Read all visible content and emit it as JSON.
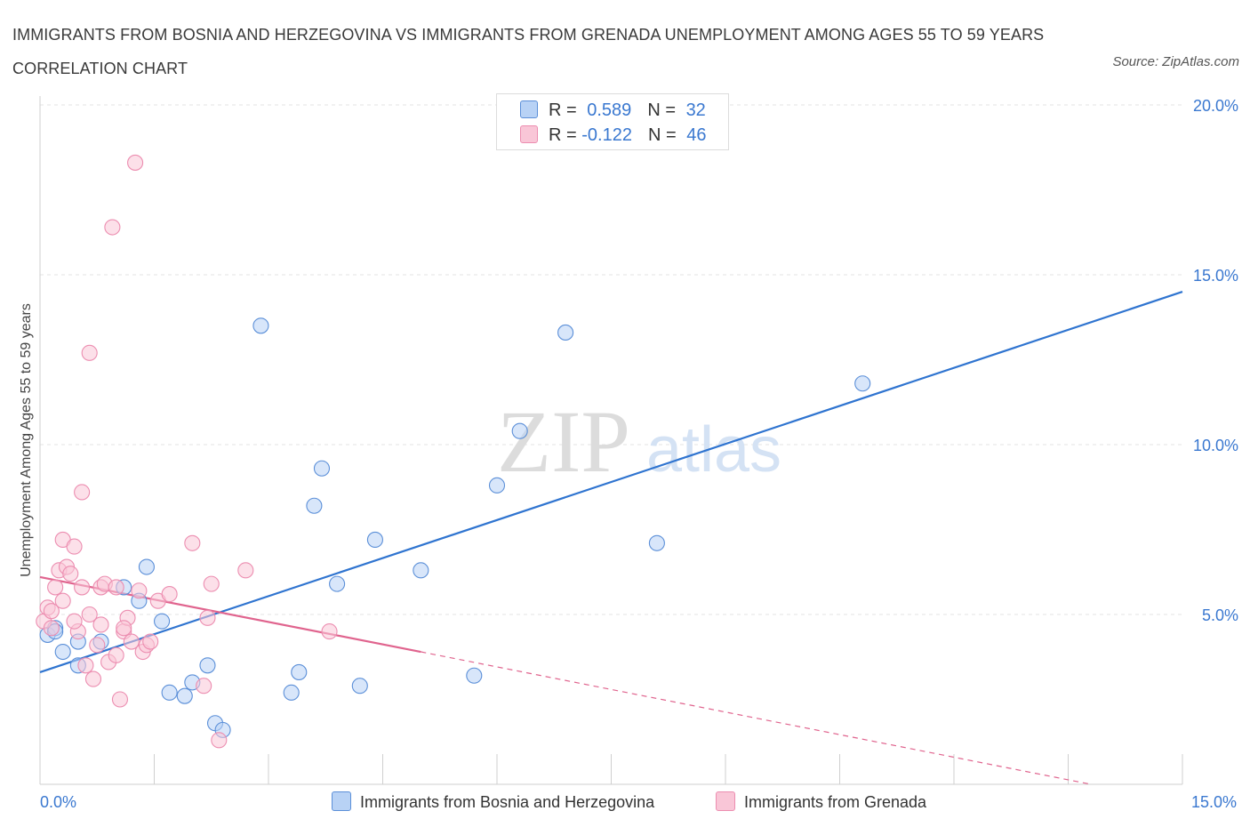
{
  "title": "IMMIGRANTS FROM BOSNIA AND HERZEGOVINA VS IMMIGRANTS FROM GRENADA UNEMPLOYMENT AMONG AGES 55 TO 59 YEARS CORRELATION CHART",
  "source": "Source: ZipAtlas.com",
  "watermark": {
    "zip": "ZIP",
    "atlas": "atlas"
  },
  "colors": {
    "blue": "#5b8fd8",
    "blue_fill": "#b8d2f5",
    "blue_line": "#2f74d0",
    "pink": "#ec8db0",
    "pink_fill": "#f9c6d7",
    "pink_line": "#e0648e",
    "axis_text": "#3a78d0",
    "grid": "#e3e3e3"
  },
  "legend_top": [
    {
      "r_label": "R = ",
      "r_value": "0.589",
      "n_label": "N = ",
      "n_value": "32"
    },
    {
      "r_label": "R = ",
      "r_value": "-0.122",
      "n_label": "N = ",
      "n_value": "46"
    }
  ],
  "chart_data": {
    "type": "scatter",
    "title": "IMMIGRANTS FROM BOSNIA AND HERZEGOVINA VS IMMIGRANTS FROM GRENADA UNEMPLOYMENT AMONG AGES 55 TO 59 YEARS CORRELATION CHART",
    "xlabel": "",
    "ylabel": "Unemployment Among Ages 55 to 59 years",
    "xlim": [
      0,
      15
    ],
    "ylim": [
      0,
      20
    ],
    "x_tick_labels": [
      "0.0%",
      "15.0%"
    ],
    "y_ticks": [
      5,
      10,
      15,
      20
    ],
    "y_tick_labels": [
      "5.0%",
      "10.0%",
      "15.0%",
      "20.0%"
    ],
    "grid": true,
    "legend_position": "bottom",
    "series": [
      {
        "name": "Immigrants from Bosnia and Herzegovina",
        "color": "#5b8fd8",
        "trend": {
          "x": [
            0,
            15
          ],
          "y": [
            3.3,
            14.5
          ],
          "style": "solid"
        },
        "points": [
          [
            0.1,
            4.4
          ],
          [
            0.2,
            4.6
          ],
          [
            0.3,
            3.9
          ],
          [
            0.5,
            4.2
          ],
          [
            0.8,
            4.2
          ],
          [
            0.5,
            3.5
          ],
          [
            1.1,
            5.8
          ],
          [
            1.3,
            5.4
          ],
          [
            1.4,
            6.4
          ],
          [
            1.6,
            4.8
          ],
          [
            1.7,
            2.7
          ],
          [
            1.9,
            2.6
          ],
          [
            2.0,
            3.0
          ],
          [
            2.2,
            3.5
          ],
          [
            2.3,
            1.8
          ],
          [
            2.4,
            1.6
          ],
          [
            2.9,
            13.5
          ],
          [
            3.3,
            2.7
          ],
          [
            3.4,
            3.3
          ],
          [
            3.6,
            8.2
          ],
          [
            3.7,
            9.3
          ],
          [
            3.9,
            5.9
          ],
          [
            4.2,
            2.9
          ],
          [
            4.4,
            7.2
          ],
          [
            5.0,
            6.3
          ],
          [
            5.7,
            3.2
          ],
          [
            6.0,
            8.8
          ],
          [
            6.3,
            10.4
          ],
          [
            6.9,
            13.3
          ],
          [
            8.1,
            7.1
          ],
          [
            10.8,
            11.8
          ],
          [
            0.2,
            4.5
          ]
        ]
      },
      {
        "name": "Immigrants from Grenada",
        "color": "#ec8db0",
        "trend": {
          "x": [
            0,
            5.0
          ],
          "y": [
            6.1,
            3.9
          ],
          "style": "solid",
          "ext_x": [
            5.0,
            13.8
          ],
          "ext_y": [
            3.9,
            0.0
          ],
          "ext_style": "dashed"
        },
        "points": [
          [
            0.05,
            4.8
          ],
          [
            0.1,
            5.2
          ],
          [
            0.15,
            4.6
          ],
          [
            0.2,
            5.8
          ],
          [
            0.25,
            6.3
          ],
          [
            0.3,
            7.2
          ],
          [
            0.35,
            6.4
          ],
          [
            0.4,
            6.2
          ],
          [
            0.45,
            7.0
          ],
          [
            0.5,
            4.5
          ],
          [
            0.55,
            8.6
          ],
          [
            0.6,
            3.5
          ],
          [
            0.65,
            5.0
          ],
          [
            0.7,
            3.1
          ],
          [
            0.75,
            4.1
          ],
          [
            0.8,
            5.8
          ],
          [
            0.85,
            5.9
          ],
          [
            0.9,
            3.6
          ],
          [
            0.95,
            16.4
          ],
          [
            1.0,
            3.8
          ],
          [
            1.05,
            2.5
          ],
          [
            1.1,
            4.5
          ],
          [
            1.15,
            4.9
          ],
          [
            1.2,
            4.2
          ],
          [
            1.25,
            18.3
          ],
          [
            1.3,
            5.7
          ],
          [
            1.35,
            3.9
          ],
          [
            1.4,
            4.1
          ],
          [
            1.55,
            5.4
          ],
          [
            1.7,
            5.6
          ],
          [
            2.0,
            7.1
          ],
          [
            2.15,
            2.9
          ],
          [
            2.25,
            5.9
          ],
          [
            2.35,
            1.3
          ],
          [
            2.7,
            6.3
          ],
          [
            3.8,
            4.5
          ],
          [
            0.65,
            12.7
          ],
          [
            0.8,
            4.7
          ],
          [
            1.0,
            5.8
          ],
          [
            0.3,
            5.4
          ],
          [
            0.45,
            4.8
          ],
          [
            0.15,
            5.1
          ],
          [
            0.55,
            5.8
          ],
          [
            1.1,
            4.6
          ],
          [
            2.2,
            4.9
          ],
          [
            1.45,
            4.2
          ]
        ]
      }
    ]
  },
  "legend_bottom": [
    {
      "label": "Immigrants from Bosnia and Herzegovina"
    },
    {
      "label": "Immigrants from Grenada"
    }
  ]
}
